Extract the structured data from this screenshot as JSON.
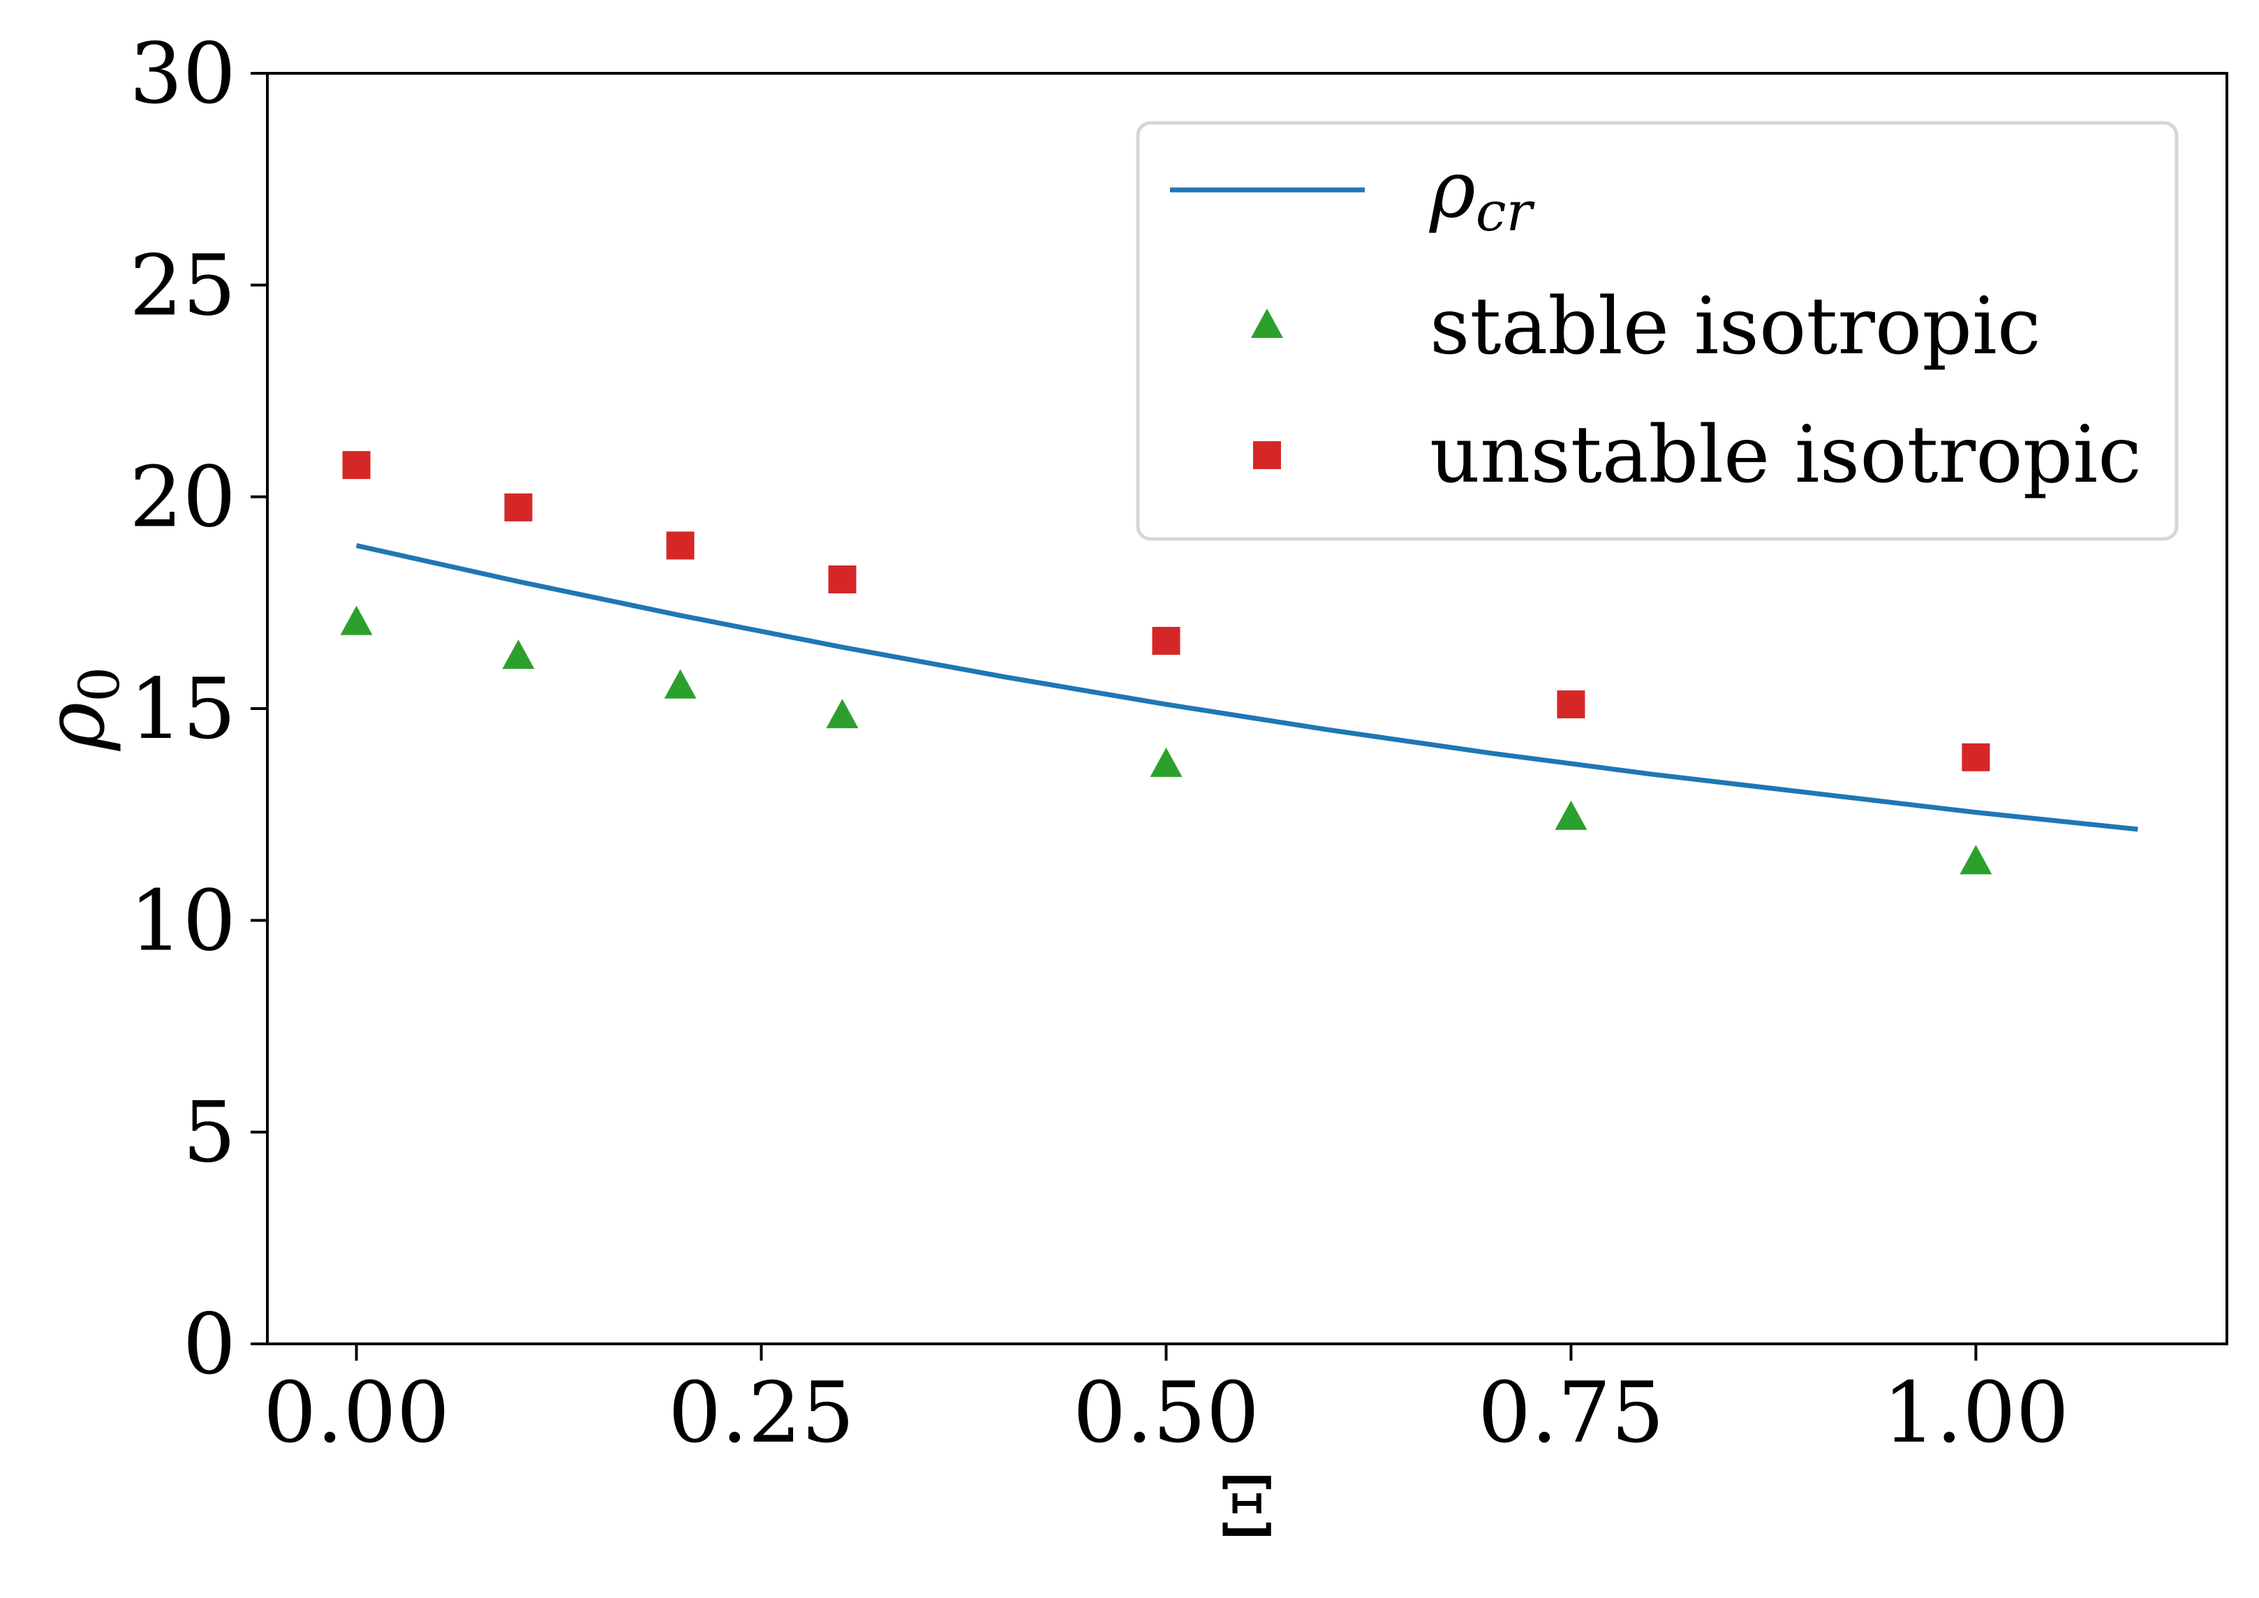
{
  "chart_data": {
    "type": "scatter",
    "title": "",
    "xlabel": "Ξ",
    "ylabel": "ρ",
    "ylabel_sub": "0",
    "xlim": [
      -0.055,
      1.155
    ],
    "ylim": [
      0,
      30
    ],
    "xticks": [
      0.0,
      0.25,
      0.5,
      0.75,
      1.0
    ],
    "xtick_labels": [
      "0.00",
      "0.25",
      "0.50",
      "0.75",
      "1.00"
    ],
    "yticks": [
      0,
      5,
      10,
      15,
      20,
      25,
      30
    ],
    "ytick_labels": [
      "0",
      "5",
      "10",
      "15",
      "20",
      "25",
      "30"
    ],
    "grid": false,
    "legend_position": "top-right",
    "series": [
      {
        "name": "ρ",
        "name_sub": "cr",
        "kind": "line",
        "color": "#1f77b4",
        "x": [
          0.0,
          0.1,
          0.2,
          0.3,
          0.4,
          0.5,
          0.6,
          0.7,
          0.8,
          0.9,
          1.0,
          1.1
        ],
        "values": [
          18.85,
          18.0,
          17.2,
          16.45,
          15.75,
          15.1,
          14.5,
          13.95,
          13.45,
          13.0,
          12.55,
          12.15
        ]
      },
      {
        "name": "stable isotropic",
        "kind": "scatter",
        "marker": "triangle",
        "color": "#2ca02c",
        "x": [
          0.0,
          0.1,
          0.2,
          0.3,
          0.5,
          0.75,
          1.0
        ],
        "values": [
          17.0,
          16.2,
          15.5,
          14.8,
          13.65,
          12.4,
          11.35
        ]
      },
      {
        "name": "unstable isotropic",
        "kind": "scatter",
        "marker": "square",
        "color": "#d62728",
        "x": [
          0.0,
          0.1,
          0.2,
          0.3,
          0.5,
          0.75,
          1.0
        ],
        "values": [
          20.75,
          19.75,
          18.85,
          18.05,
          16.6,
          15.1,
          13.85
        ]
      }
    ]
  }
}
